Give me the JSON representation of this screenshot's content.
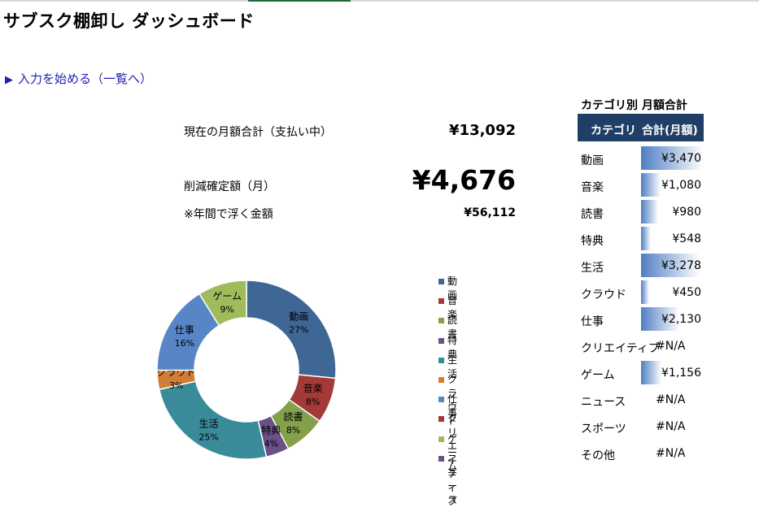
{
  "title": "サブスク棚卸し ダッシュボード",
  "start_link": {
    "icon": "play-triangle-icon",
    "label": "入力を始める（一覧へ）"
  },
  "summary": {
    "current_label": "現在の月額合計（支払い中）",
    "current_value": "¥13,092",
    "reduction_label": "削減確定額（月）",
    "reduction_value": "¥4,676",
    "annual_label": "※年間で浮く金額",
    "annual_value": "¥56,112"
  },
  "category_table": {
    "title": "カテゴリ別 月額合計",
    "col_category": "カテゴリ",
    "col_total": "合計(月額)",
    "bar_color": "#4f7ec2",
    "header_color": "#1f3f66",
    "rows": [
      {
        "name": "動画",
        "amount": "¥3,470",
        "value": 3470
      },
      {
        "name": "音楽",
        "amount": "¥1,080",
        "value": 1080
      },
      {
        "name": "読書",
        "amount": "¥980",
        "value": 980
      },
      {
        "name": "特典",
        "amount": "¥548",
        "value": 548
      },
      {
        "name": "生活",
        "amount": "¥3,278",
        "value": 3278
      },
      {
        "name": "クラウド",
        "amount": "¥450",
        "value": 450
      },
      {
        "name": "仕事",
        "amount": "¥2,130",
        "value": 2130
      },
      {
        "name": "クリエイティブ",
        "amount": "#N/A",
        "value": null
      },
      {
        "name": "ゲーム",
        "amount": "¥1,156",
        "value": 1156
      },
      {
        "name": "ニュース",
        "amount": "#N/A",
        "value": null
      },
      {
        "name": "スポーツ",
        "amount": "#N/A",
        "value": null
      },
      {
        "name": "その他",
        "amount": "#N/A",
        "value": null
      }
    ]
  },
  "chart_data": {
    "type": "pie",
    "style": "donut",
    "categories": [
      "動画",
      "音楽",
      "読書",
      "特典",
      "生活",
      "クラウド",
      "仕事",
      "ゲーム"
    ],
    "values": [
      3470,
      1080,
      980,
      548,
      3278,
      450,
      2130,
      1156
    ],
    "percent_labels": [
      "27%",
      "8%",
      "8%",
      "4%",
      "25%",
      "3%",
      "16%",
      "9%"
    ],
    "colors": [
      "#3f6796",
      "#a33a38",
      "#84a04a",
      "#6a4f88",
      "#3a8b9a",
      "#d27d36",
      "#5885c6",
      "#9fbc5c"
    ],
    "legend": [
      {
        "name": "動画",
        "color": "#3f6796"
      },
      {
        "name": "音楽",
        "color": "#a33a38"
      },
      {
        "name": "読書",
        "color": "#84a04a"
      },
      {
        "name": "特典",
        "color": "#6a4f88"
      },
      {
        "name": "生活",
        "color": "#3a8b9a"
      },
      {
        "name": "クラウド",
        "color": "#d27d36"
      },
      {
        "name": "仕事",
        "color": "#5885c6"
      },
      {
        "name": "クリエイティブ",
        "color": "#a33a38"
      },
      {
        "name": "ゲーム",
        "color": "#9fbc5c"
      },
      {
        "name": "ニュース",
        "color": "#6a4f88"
      }
    ],
    "legend_position": "right"
  }
}
